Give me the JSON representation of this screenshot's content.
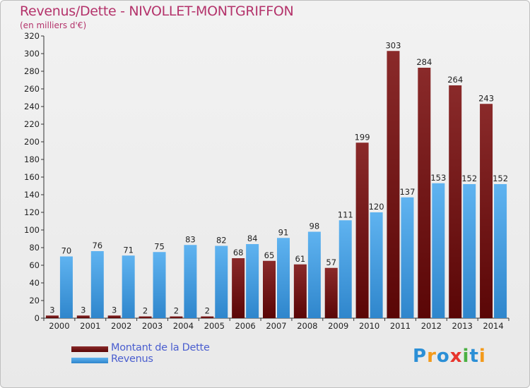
{
  "header": {
    "title": "Revenus/Dette - NIVOLLET-MONTGRIFFON",
    "subtitle": "(en milliers d'€)"
  },
  "legend": {
    "items": [
      {
        "label": "Montant de la Dette",
        "color": "#6e1010"
      },
      {
        "label": "Revenus",
        "color": "#4aa3e6"
      }
    ]
  },
  "logo": {
    "text": "Proxiti"
  },
  "chart_data": {
    "type": "bar",
    "categories": [
      "2000",
      "2001",
      "2002",
      "2003",
      "2004",
      "2005",
      "2006",
      "2007",
      "2008",
      "2009",
      "2010",
      "2011",
      "2012",
      "2013",
      "2014"
    ],
    "series": [
      {
        "name": "Montant de la Dette",
        "color": "#6e1010",
        "values": [
          3,
          3,
          3,
          2,
          2,
          2,
          68,
          65,
          61,
          57,
          199,
          303,
          284,
          264,
          243
        ]
      },
      {
        "name": "Revenus",
        "color": "#4aa3e6",
        "values": [
          70,
          76,
          71,
          75,
          83,
          82,
          84,
          91,
          98,
          111,
          120,
          137,
          153,
          152,
          152
        ]
      }
    ],
    "title": "Revenus/Dette - NIVOLLET-MONTGRIFFON",
    "subtitle": "(en milliers d'€)",
    "ylim": [
      0,
      320
    ],
    "yticks": [
      0,
      20,
      40,
      60,
      80,
      100,
      120,
      140,
      160,
      180,
      200,
      220,
      240,
      260,
      280,
      300,
      320
    ],
    "grid": false,
    "legend_position": "bottom-left"
  }
}
